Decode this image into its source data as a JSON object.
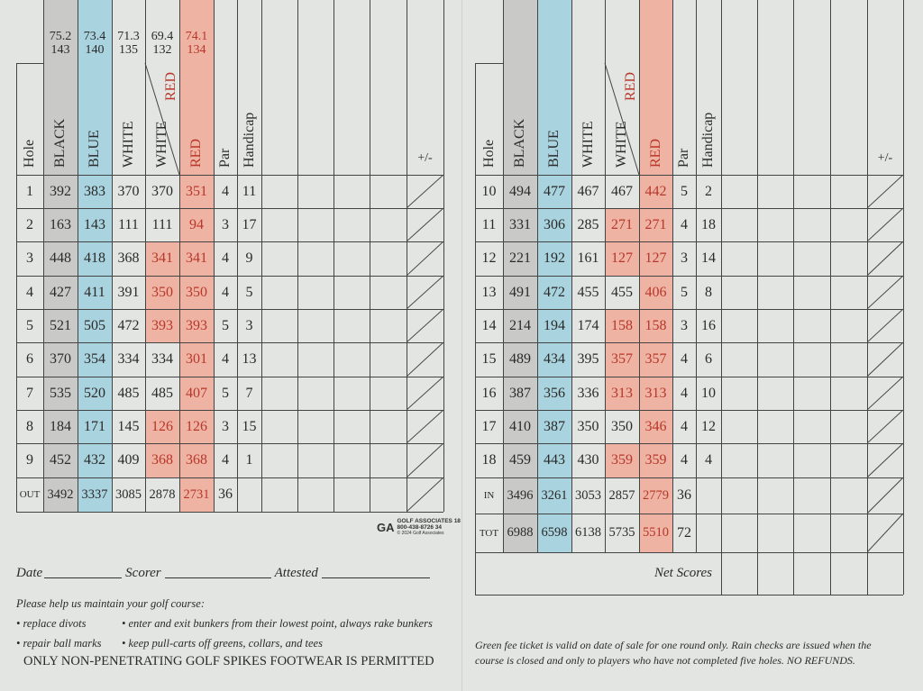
{
  "colors": {
    "black_tee": "#c9cac8",
    "blue_tee": "#a9d3df",
    "red_tee": "#eeb3a3",
    "red_text": "#b8362a"
  },
  "front": {
    "headers": [
      "Hole",
      "BLACK",
      "BLUE",
      "WHITE",
      "WHITE",
      "RED",
      "Par",
      "Handicap"
    ],
    "white_red_sub": "RED",
    "plus_minus": "+/-",
    "ratings": [
      {
        "rating": "75.2",
        "slope": "143"
      },
      {
        "rating": "73.4",
        "slope": "140"
      },
      {
        "rating": "71.3",
        "slope": "135"
      },
      {
        "rating": "69.4",
        "slope": "132"
      },
      {
        "rating": "74.1",
        "slope": "134"
      }
    ],
    "rows": [
      {
        "hole": "1",
        "black": "392",
        "blue": "383",
        "white": "370",
        "white_red": "370",
        "red": "351",
        "par": "4",
        "hcp": "11",
        "wr_red": false
      },
      {
        "hole": "2",
        "black": "163",
        "blue": "143",
        "white": "111",
        "white_red": "111",
        "red": "94",
        "par": "3",
        "hcp": "17",
        "wr_red": false
      },
      {
        "hole": "3",
        "black": "448",
        "blue": "418",
        "white": "368",
        "white_red": "341",
        "red": "341",
        "par": "4",
        "hcp": "9",
        "wr_red": true
      },
      {
        "hole": "4",
        "black": "427",
        "blue": "411",
        "white": "391",
        "white_red": "350",
        "red": "350",
        "par": "4",
        "hcp": "5",
        "wr_red": true
      },
      {
        "hole": "5",
        "black": "521",
        "blue": "505",
        "white": "472",
        "white_red": "393",
        "red": "393",
        "par": "5",
        "hcp": "3",
        "wr_red": true
      },
      {
        "hole": "6",
        "black": "370",
        "blue": "354",
        "white": "334",
        "white_red": "334",
        "red": "301",
        "par": "4",
        "hcp": "13",
        "wr_red": false
      },
      {
        "hole": "7",
        "black": "535",
        "blue": "520",
        "white": "485",
        "white_red": "485",
        "red": "407",
        "par": "5",
        "hcp": "7",
        "wr_red": false
      },
      {
        "hole": "8",
        "black": "184",
        "blue": "171",
        "white": "145",
        "white_red": "126",
        "red": "126",
        "par": "3",
        "hcp": "15",
        "wr_red": true
      },
      {
        "hole": "9",
        "black": "452",
        "blue": "432",
        "white": "409",
        "white_red": "368",
        "red": "368",
        "par": "4",
        "hcp": "1",
        "wr_red": true
      },
      {
        "hole": "OUT",
        "black": "3492",
        "blue": "3337",
        "white": "3085",
        "white_red": "2878",
        "red": "2731",
        "par": "36",
        "hcp": "",
        "wr_red": false
      }
    ],
    "logo": {
      "mark": "GA",
      "line1": "GOLF ASSOCIATES 18",
      "line2": "800-438-8726 34",
      "line3": "© 2024 Golf Associates"
    },
    "signature": {
      "date": "Date",
      "scorer": "Scorer",
      "attested": "Attested"
    },
    "notes": {
      "intro": "Please help us maintain your golf course:",
      "b1": "• replace divots",
      "b2": "• enter and exit bunkers from their lowest point, always rake bunkers",
      "b3": "• repair ball marks",
      "b4": "• keep pull-carts off greens, collars, and tees",
      "spikes": "ONLY NON-PENETRATING GOLF SPIKES FOOTWEAR IS PERMITTED"
    }
  },
  "back": {
    "headers": [
      "Hole",
      "BLACK",
      "BLUE",
      "WHITE",
      "WHITE",
      "RED",
      "Par",
      "Handicap"
    ],
    "white_red_sub": "RED",
    "plus_minus": "+/-",
    "rows": [
      {
        "hole": "10",
        "black": "494",
        "blue": "477",
        "white": "467",
        "white_red": "467",
        "red": "442",
        "par": "5",
        "hcp": "2",
        "wr_red": false
      },
      {
        "hole": "11",
        "black": "331",
        "blue": "306",
        "white": "285",
        "white_red": "271",
        "red": "271",
        "par": "4",
        "hcp": "18",
        "wr_red": true
      },
      {
        "hole": "12",
        "black": "221",
        "blue": "192",
        "white": "161",
        "white_red": "127",
        "red": "127",
        "par": "3",
        "hcp": "14",
        "wr_red": true
      },
      {
        "hole": "13",
        "black": "491",
        "blue": "472",
        "white": "455",
        "white_red": "455",
        "red": "406",
        "par": "5",
        "hcp": "8",
        "wr_red": false
      },
      {
        "hole": "14",
        "black": "214",
        "blue": "194",
        "white": "174",
        "white_red": "158",
        "red": "158",
        "par": "3",
        "hcp": "16",
        "wr_red": true
      },
      {
        "hole": "15",
        "black": "489",
        "blue": "434",
        "white": "395",
        "white_red": "357",
        "red": "357",
        "par": "4",
        "hcp": "6",
        "wr_red": true
      },
      {
        "hole": "16",
        "black": "387",
        "blue": "356",
        "white": "336",
        "white_red": "313",
        "red": "313",
        "par": "4",
        "hcp": "10",
        "wr_red": true
      },
      {
        "hole": "17",
        "black": "410",
        "blue": "387",
        "white": "350",
        "white_red": "350",
        "red": "346",
        "par": "4",
        "hcp": "12",
        "wr_red": false
      },
      {
        "hole": "18",
        "black": "459",
        "blue": "443",
        "white": "430",
        "white_red": "359",
        "red": "359",
        "par": "4",
        "hcp": "4",
        "wr_red": true
      },
      {
        "hole": "IN",
        "black": "3496",
        "blue": "3261",
        "white": "3053",
        "white_red": "2857",
        "red": "2779",
        "par": "36",
        "hcp": "",
        "wr_red": false
      },
      {
        "hole": "TOT",
        "black": "6988",
        "blue": "6598",
        "white": "6138",
        "white_red": "5735",
        "red": "5510",
        "par": "72",
        "hcp": "",
        "wr_red": false
      }
    ],
    "net_scores": "Net Scores",
    "rain_check": {
      "line1": "Green fee ticket is valid on date of sale for one round only. Rain checks are issued when the",
      "line2": "course is closed and only to players who have not completed five holes. NO REFUNDS."
    }
  }
}
